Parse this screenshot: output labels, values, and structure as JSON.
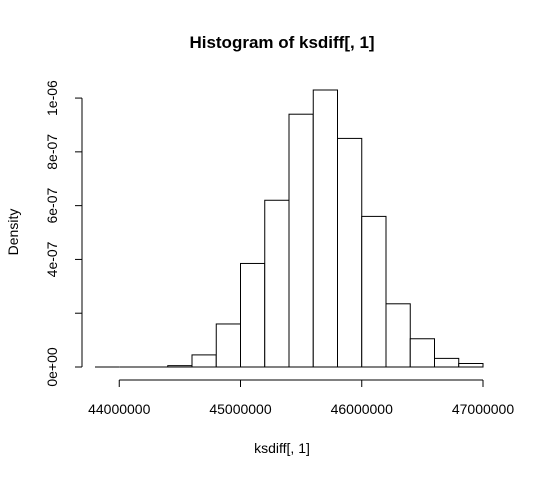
{
  "chart_data": {
    "type": "histogram",
    "title": "Histogram of ksdiff[, 1]",
    "xlabel": "ksdiff[, 1]",
    "ylabel": "Density",
    "x_ticks": [
      44000000,
      45000000,
      46000000,
      47000000
    ],
    "x_tick_labels": [
      "44000000",
      "45000000",
      "46000000",
      "47000000"
    ],
    "y_ticks": [
      0,
      2e-07,
      4e-07,
      6e-07,
      8e-07,
      1e-06
    ],
    "y_tick_labels": [
      "0e+00",
      "",
      "4e-07",
      "6e-07",
      "8e-07",
      "1e-06"
    ],
    "xlim": [
      43800000,
      47000000
    ],
    "ylim": [
      0,
      1.03e-06
    ],
    "bin_width": 200000,
    "bins": [
      {
        "start": 43800000,
        "end": 44000000,
        "density": 0
      },
      {
        "start": 44000000,
        "end": 44200000,
        "density": 0
      },
      {
        "start": 44200000,
        "end": 44400000,
        "density": 0
      },
      {
        "start": 44400000,
        "end": 44600000,
        "density": 5e-09
      },
      {
        "start": 44600000,
        "end": 44800000,
        "density": 4.5e-08
      },
      {
        "start": 44800000,
        "end": 45000000,
        "density": 1.6e-07
      },
      {
        "start": 45000000,
        "end": 45200000,
        "density": 3.85e-07
      },
      {
        "start": 45200000,
        "end": 45400000,
        "density": 6.2e-07
      },
      {
        "start": 45400000,
        "end": 45600000,
        "density": 9.4e-07
      },
      {
        "start": 45600000,
        "end": 45800000,
        "density": 1.03e-06
      },
      {
        "start": 45800000,
        "end": 46000000,
        "density": 8.5e-07
      },
      {
        "start": 46000000,
        "end": 46200000,
        "density": 5.6e-07
      },
      {
        "start": 46200000,
        "end": 46400000,
        "density": 2.35e-07
      },
      {
        "start": 46400000,
        "end": 46600000,
        "density": 1.05e-07
      },
      {
        "start": 46600000,
        "end": 46800000,
        "density": 3.2e-08
      },
      {
        "start": 46800000,
        "end": 47000000,
        "density": 1.3e-08
      }
    ]
  }
}
